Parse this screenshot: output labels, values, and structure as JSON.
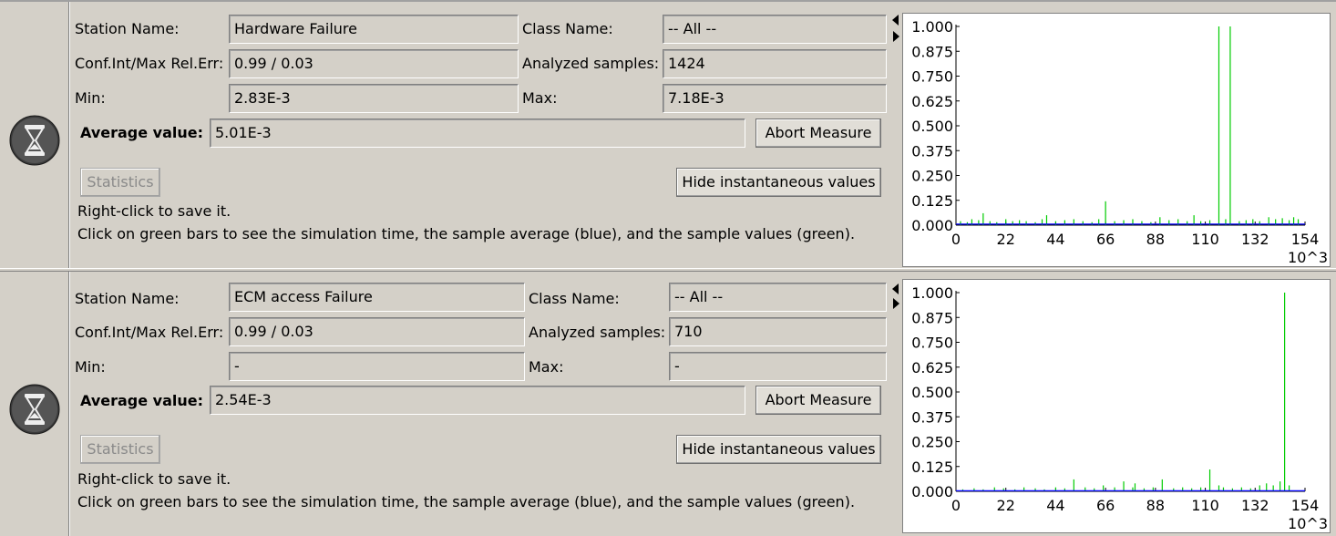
{
  "labels": {
    "station_name": "Station Name:",
    "class_name": "Class Name:",
    "conf_int": "Conf.Int/Max Rel.Err:",
    "analyzed_samples": "Analyzed samples:",
    "min": "Min:",
    "max": "Max:",
    "average_value": "Average value:",
    "abort_button": "Abort Measure",
    "statistics_button": "Statistics",
    "hide_button": "Hide instantaneous values",
    "hint_line1": "Right-click to save it.",
    "hint_line2": "Click on green bars to see the simulation time, the sample average (blue), and the sample values (green)."
  },
  "colors": {
    "panel_bg": "#d4d0c8",
    "sample_values": "#00cc00",
    "sample_average": "#0000ff"
  },
  "icons": {
    "hourglass": "hourglass-icon",
    "collapse_left": "triangle-left-icon",
    "expand_right": "triangle-right-icon"
  },
  "measures": [
    {
      "station_name": "Hardware Failure",
      "class_name": "-- All --",
      "conf_int": "0.99 / 0.03",
      "analyzed_samples": "1424",
      "min": "2.83E-3",
      "max": "7.18E-3",
      "average_value": "5.01E-3"
    },
    {
      "station_name": "ECM access Failure",
      "class_name": "-- All --",
      "conf_int": "0.99 / 0.03",
      "analyzed_samples": "710",
      "min": "-",
      "max": "-",
      "average_value": "2.54E-3"
    }
  ],
  "chart_data": [
    {
      "type": "bar",
      "y_ticks": [
        "0.000",
        "0.125",
        "0.250",
        "0.375",
        "0.500",
        "0.625",
        "0.750",
        "0.875",
        "1.000"
      ],
      "x_ticks": [
        "0",
        "22",
        "44",
        "66",
        "88",
        "110",
        "132",
        "154"
      ],
      "x_unit": "10^3",
      "ylim": [
        0,
        1
      ],
      "xlim": [
        0,
        154
      ],
      "series": [
        {
          "name": "sample values",
          "x": [
            2,
            5,
            7,
            10,
            12,
            15,
            18,
            22,
            25,
            28,
            31,
            35,
            38,
            40,
            44,
            48,
            52,
            56,
            60,
            63,
            66,
            70,
            74,
            78,
            82,
            86,
            90,
            94,
            98,
            102,
            105,
            108,
            112,
            116,
            119,
            121,
            125,
            128,
            131,
            134,
            138,
            141,
            144,
            147,
            149,
            151
          ],
          "values": [
            0.02,
            0.015,
            0.03,
            0.025,
            0.06,
            0.02,
            0.015,
            0.03,
            0.02,
            0.025,
            0.02,
            0.015,
            0.03,
            0.05,
            0.02,
            0.025,
            0.03,
            0.02,
            0.015,
            0.03,
            0.12,
            0.02,
            0.025,
            0.03,
            0.02,
            0.015,
            0.04,
            0.025,
            0.03,
            0.02,
            0.05,
            0.02,
            0.025,
            1.0,
            0.03,
            1.0,
            0.02,
            0.025,
            0.03,
            0.02,
            0.04,
            0.03,
            0.035,
            0.025,
            0.04,
            0.03
          ]
        },
        {
          "name": "sample average",
          "x": [
            0,
            154
          ],
          "values": [
            0.005,
            0.005
          ]
        }
      ]
    },
    {
      "type": "bar",
      "y_ticks": [
        "0.000",
        "0.125",
        "0.250",
        "0.375",
        "0.500",
        "0.625",
        "0.750",
        "0.875",
        "1.000"
      ],
      "x_ticks": [
        "0",
        "22",
        "44",
        "66",
        "88",
        "110",
        "132",
        "154"
      ],
      "x_unit": "10^3",
      "ylim": [
        0,
        1
      ],
      "xlim": [
        0,
        154
      ],
      "series": [
        {
          "name": "sample values",
          "x": [
            3,
            8,
            12,
            17,
            21,
            26,
            30,
            35,
            39,
            44,
            48,
            52,
            57,
            61,
            65,
            70,
            74,
            78,
            79,
            83,
            87,
            91,
            96,
            100,
            104,
            108,
            112,
            116,
            118,
            122,
            126,
            130,
            134,
            137,
            140,
            143,
            145,
            147
          ],
          "values": [
            0.01,
            0.015,
            0.01,
            0.02,
            0.015,
            0.01,
            0.02,
            0.015,
            0.01,
            0.02,
            0.015,
            0.06,
            0.02,
            0.015,
            0.03,
            0.02,
            0.05,
            0.02,
            0.04,
            0.015,
            0.02,
            0.06,
            0.015,
            0.02,
            0.015,
            0.02,
            0.11,
            0.03,
            0.02,
            0.015,
            0.02,
            0.015,
            0.03,
            0.04,
            0.03,
            0.05,
            1.0,
            0.03
          ]
        },
        {
          "name": "sample average",
          "x": [
            0,
            154
          ],
          "values": [
            0.003,
            0.003
          ]
        }
      ]
    }
  ]
}
